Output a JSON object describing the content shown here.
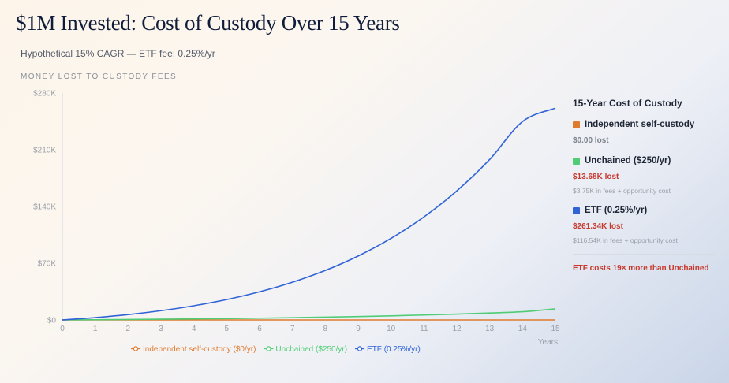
{
  "header": {
    "title": "$1M Invested: Cost of Custody Over 15 Years",
    "subtitle": "Hypothetical 15% CAGR — ETF fee: 0.25%/yr",
    "section_label": "MONEY LOST TO CUSTODY FEES"
  },
  "colors": {
    "self_custody": "#e07b2e",
    "unchained": "#4fcc74",
    "etf": "#2f63d6",
    "loss": "#c8382c"
  },
  "chart_data": {
    "type": "line",
    "title": "Money Lost to Custody Fees",
    "xlabel": "Years",
    "ylabel": "",
    "x": [
      0,
      1,
      2,
      3,
      4,
      5,
      6,
      7,
      8,
      9,
      10,
      11,
      12,
      13,
      14,
      15
    ],
    "ylim": [
      0,
      280000
    ],
    "yticks": [
      0,
      70000,
      140000,
      210000,
      280000
    ],
    "ytick_labels": [
      "$0",
      "$70K",
      "$140K",
      "$210K",
      "$280K"
    ],
    "xtick_labels": [
      "0",
      "1",
      "2",
      "3",
      "4",
      "5",
      "6",
      "7",
      "8",
      "9",
      "10",
      "11",
      "12",
      "13",
      "14",
      "15"
    ],
    "grid": false,
    "legend_position": "bottom",
    "series": [
      {
        "name": "Independent self-custody ($0/yr)",
        "color": "#e07b2e",
        "values": [
          0,
          0,
          0,
          0,
          0,
          0,
          0,
          0,
          0,
          0,
          0,
          0,
          0,
          0,
          0,
          0
        ]
      },
      {
        "name": "Unchained ($250/yr)",
        "color": "#4fcc74",
        "values": [
          0,
          250,
          538,
          868,
          1248,
          1685,
          2188,
          2766,
          3431,
          4196,
          5075,
          6087,
          7250,
          8588,
          10126,
          13680
        ]
      },
      {
        "name": "ETF (0.25%/yr)",
        "color": "#2f63d6",
        "values": [
          0,
          2875,
          6620,
          11425,
          17520,
          25180,
          34725,
          46540,
          61080,
          78900,
          100650,
          127100,
          159200,
          198000,
          244800,
          261340
        ]
      }
    ]
  },
  "panel": {
    "title": "15-Year Cost of Custody",
    "entries": [
      {
        "label": "Independent self-custody",
        "lost": "$0.00 lost",
        "note": ""
      },
      {
        "label": "Unchained ($250/yr)",
        "lost": "$13.68K lost",
        "note": "$3.75K in fees + opportunity cost"
      },
      {
        "label": "ETF (0.25%/yr)",
        "lost": "$261.34K lost",
        "note": "$116.54K in fees + opportunity cost"
      }
    ],
    "summary": "ETF costs 19× more than Unchained"
  }
}
